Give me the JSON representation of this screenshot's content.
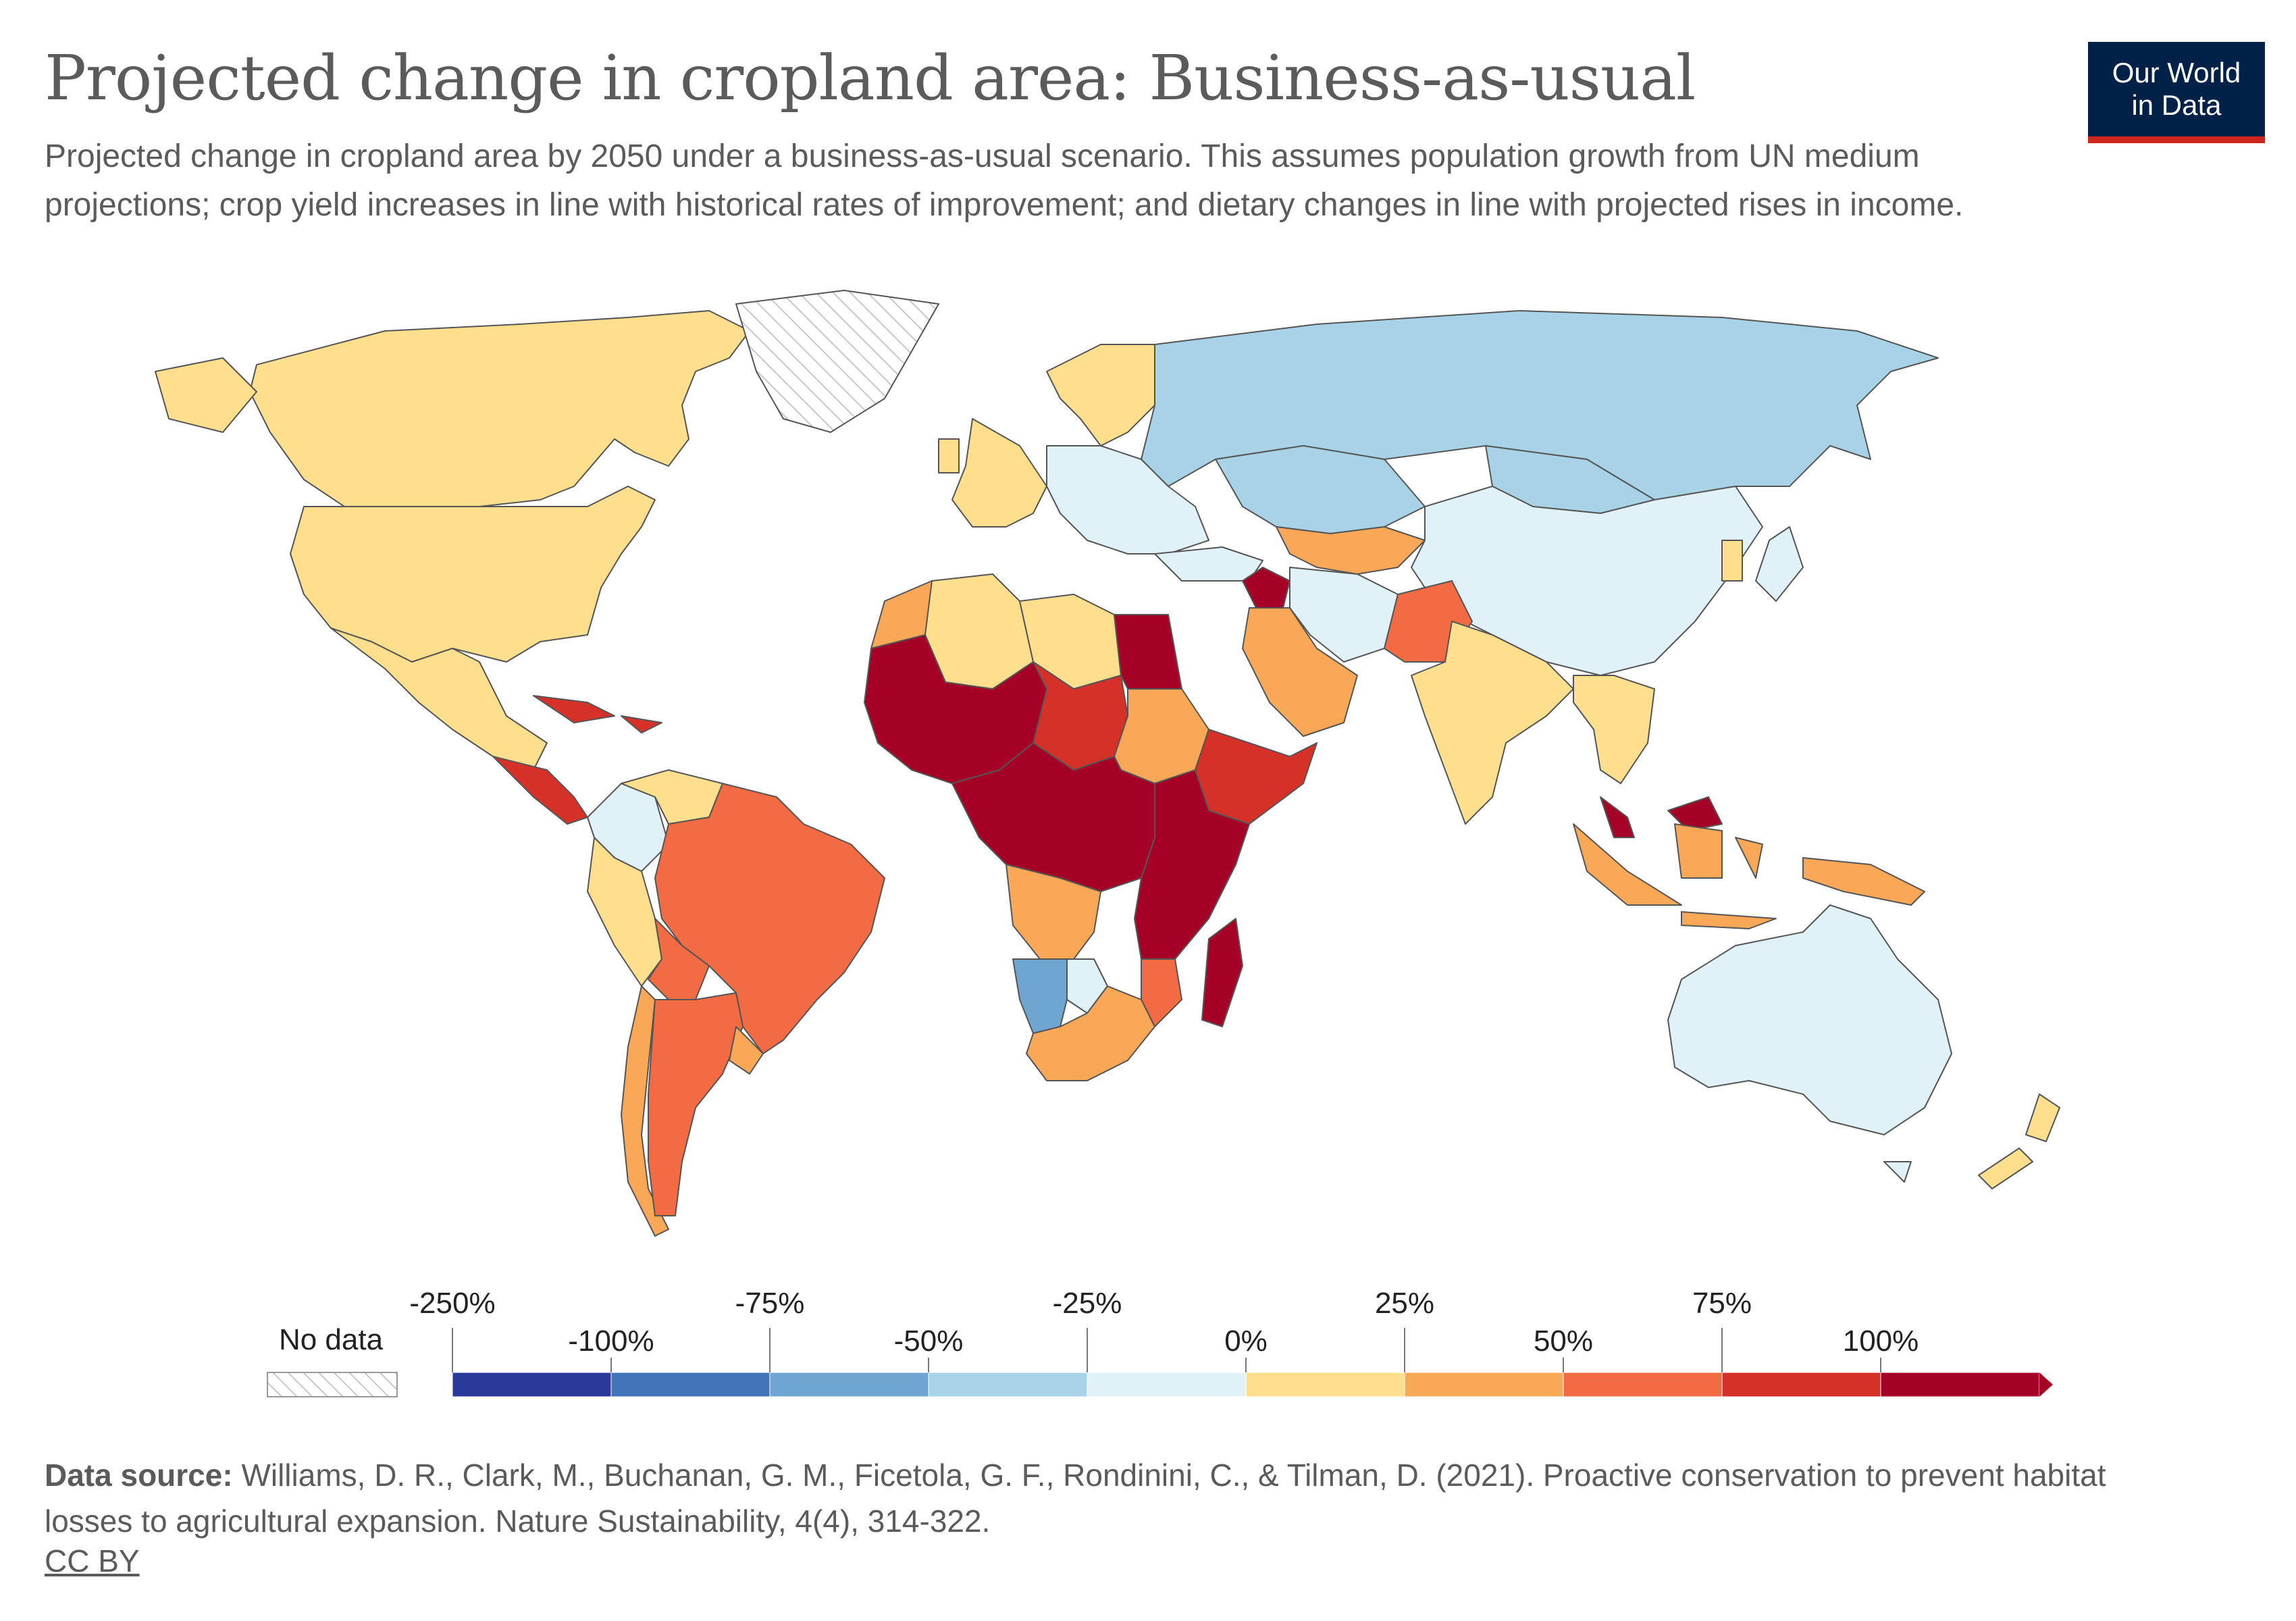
{
  "title": "Projected change in cropland area: Business-as-usual",
  "subtitle": "Projected change in cropland area by 2050 under a business-as-usual scenario. This assumes population growth from UN medium projections; crop yield increases in line with historical rates of improvement; and dietary changes in line with projected rises in income.",
  "logo": {
    "line1": "Our World",
    "line2": "in Data",
    "bg_color": "#002147",
    "accent_color": "#ce261e"
  },
  "legend": {
    "no_data_label": "No data",
    "upper_ticks": [
      "-250%",
      "-75%",
      "-25%",
      "25%",
      "75%"
    ],
    "lower_ticks": [
      "-100%",
      "-50%",
      "0%",
      "50%",
      "100%"
    ],
    "bins": [
      {
        "color": "#2b3a9a"
      },
      {
        "color": "#4373b9"
      },
      {
        "color": "#6ea6d1"
      },
      {
        "color": "#a8d3e6"
      },
      {
        "color": "#e0f1f8"
      },
      {
        "color": "#fddf8e"
      },
      {
        "color": "#f9a858"
      },
      {
        "color": "#f26b43"
      },
      {
        "color": "#d63128"
      },
      {
        "color": "#a50026"
      }
    ]
  },
  "source": {
    "label": "Data source:",
    "text": "Williams, D. R., Clark, M., Buchanan, G. M., Ficetola, G. F., Rondinini, C., & Tilman, D. (2021). Proactive conservation to prevent habitat losses to agricultural expansion. Nature Sustainability, 4(4), 314-322."
  },
  "license": "CC BY",
  "regions": [
    {
      "name": "Canada",
      "color": "#fddf8e"
    },
    {
      "name": "United States",
      "color": "#fddf8e"
    },
    {
      "name": "Mexico",
      "color": "#fddf8e"
    },
    {
      "name": "Greenland",
      "color": "no-data"
    },
    {
      "name": "Central America",
      "color": "#d63128"
    },
    {
      "name": "Caribbean",
      "color": "#d63128"
    },
    {
      "name": "Colombia",
      "color": "#e0f1f8"
    },
    {
      "name": "Venezuela",
      "color": "#fddf8e"
    },
    {
      "name": "Peru",
      "color": "#fddf8e"
    },
    {
      "name": "Brazil",
      "color": "#f26b43"
    },
    {
      "name": "Bolivia",
      "color": "#f26b43"
    },
    {
      "name": "Chile",
      "color": "#f9a858"
    },
    {
      "name": "Argentina",
      "color": "#f26b43"
    },
    {
      "name": "Uruguay",
      "color": "#f9a858"
    },
    {
      "name": "Europe",
      "color": "#e0f1f8"
    },
    {
      "name": "Western Europe",
      "color": "#fddf8e"
    },
    {
      "name": "Scandinavia",
      "color": "#fddf8e"
    },
    {
      "name": "Russia",
      "color": "#a8d3e6"
    },
    {
      "name": "Kazakhstan",
      "color": "#a8d3e6"
    },
    {
      "name": "Mongolia",
      "color": "#a8d3e6"
    },
    {
      "name": "Central Asia",
      "color": "#f9a858"
    },
    {
      "name": "China",
      "color": "#e0f1f8"
    },
    {
      "name": "Iran",
      "color": "#e0f1f8"
    },
    {
      "name": "Turkey",
      "color": "#e0f1f8"
    },
    {
      "name": "Saudi Arabia",
      "color": "#f9a858"
    },
    {
      "name": "Levant",
      "color": "#a50026"
    },
    {
      "name": "Pakistan",
      "color": "#f26b43"
    },
    {
      "name": "India",
      "color": "#fddf8e"
    },
    {
      "name": "Southeast Asia",
      "color": "#fddf8e"
    },
    {
      "name": "Malaysia",
      "color": "#a50026"
    },
    {
      "name": "Indonesia",
      "color": "#f9a858"
    },
    {
      "name": "Papua New Guinea",
      "color": "#f9a858"
    },
    {
      "name": "Japan",
      "color": "#e0f1f8"
    },
    {
      "name": "Korea",
      "color": "#fddf8e"
    },
    {
      "name": "Australia",
      "color": "#e0f1f8"
    },
    {
      "name": "New Zealand",
      "color": "#fddf8e"
    },
    {
      "name": "Morocco",
      "color": "#f9a858"
    },
    {
      "name": "Algeria",
      "color": "#fddf8e"
    },
    {
      "name": "Libya",
      "color": "#fddf8e"
    },
    {
      "name": "Egypt",
      "color": "#a50026"
    },
    {
      "name": "West Africa",
      "color": "#a50026"
    },
    {
      "name": "Niger-Chad",
      "color": "#d63128"
    },
    {
      "name": "Sudan",
      "color": "#f9a858"
    },
    {
      "name": "Ethiopia",
      "color": "#d63128"
    },
    {
      "name": "Central Africa",
      "color": "#a50026"
    },
    {
      "name": "East Africa",
      "color": "#a50026"
    },
    {
      "name": "Angola",
      "color": "#f9a858"
    },
    {
      "name": "Namibia",
      "color": "#6ea6d1"
    },
    {
      "name": "Botswana",
      "color": "#e0f1f8"
    },
    {
      "name": "Mozambique",
      "color": "#f26b43"
    },
    {
      "name": "South Africa",
      "color": "#f9a858"
    },
    {
      "name": "Madagascar",
      "color": "#a50026"
    }
  ]
}
